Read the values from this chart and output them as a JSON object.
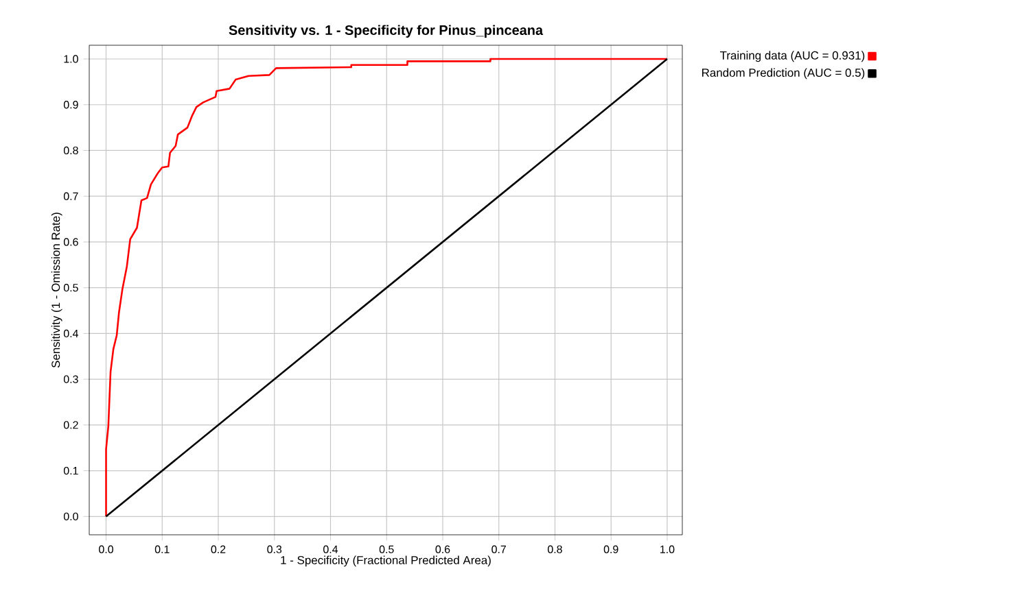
{
  "chart_data": {
    "type": "line",
    "title": "Sensitivity vs. 1 - Specificity for Pinus_pinceana",
    "xlabel": "1 - Specificity  (Fractional Predicted Area)",
    "ylabel": "Sensitivity  (1 - Omission Rate)",
    "xlim": [
      -0.03,
      1.027
    ],
    "ylim": [
      -0.04,
      1.03
    ],
    "xticks": [
      {
        "value": 0,
        "label": "0.0"
      },
      0.1,
      0.2,
      0.3,
      0.4,
      0.5,
      0.6,
      0.7,
      0.8,
      0.9,
      {
        "value": 1,
        "label": "1.0"
      }
    ],
    "yticks": [
      {
        "value": 0,
        "label": "0.0"
      },
      0.1,
      0.2,
      0.3,
      0.4,
      0.5,
      0.6,
      0.7,
      0.8,
      0.9,
      {
        "value": 1,
        "label": "1.0"
      }
    ],
    "grid": true,
    "legend": "top right",
    "marker": "none",
    "line_style": "solid",
    "series": [
      {
        "name": "Training data (AUC = 0.931)",
        "color": "#ff0000",
        "x": [
          0,
          0,
          0.004,
          0.008,
          0.013,
          0.019,
          0.023,
          0.029,
          0.037,
          0.043,
          0.055,
          0.063,
          0.073,
          0.08,
          0.092,
          0.1,
          0.111,
          0.114,
          0.124,
          0.128,
          0.145,
          0.153,
          0.161,
          0.173,
          0.195,
          0.197,
          0.22,
          0.231,
          0.254,
          0.291,
          0.303,
          0.437,
          0.437,
          0.537,
          0.537,
          0.685,
          0.685,
          1.0
        ],
        "values": [
          0,
          0.147,
          0.197,
          0.316,
          0.366,
          0.396,
          0.446,
          0.496,
          0.546,
          0.606,
          0.631,
          0.691,
          0.696,
          0.726,
          0.75,
          0.763,
          0.765,
          0.795,
          0.81,
          0.835,
          0.85,
          0.875,
          0.895,
          0.905,
          0.917,
          0.93,
          0.935,
          0.955,
          0.963,
          0.965,
          0.98,
          0.982,
          0.987,
          0.987,
          0.995,
          0.995,
          1.0,
          1.0
        ]
      },
      {
        "name": "Random Prediction (AUC = 0.5)",
        "color": "#000000",
        "x": [
          0,
          1.0
        ],
        "values": [
          0,
          1.0
        ]
      }
    ]
  }
}
